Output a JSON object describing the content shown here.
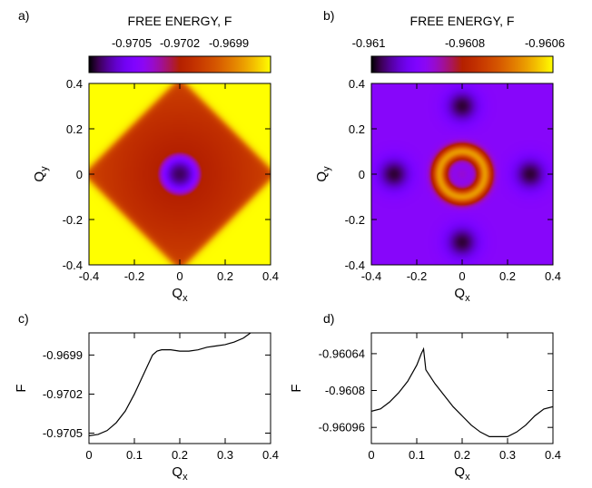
{
  "chart_data": [
    {
      "panel_label": "a)",
      "type": "heatmap",
      "colorbar": {
        "title": "FREE ENERGY, F",
        "ticks": [
          "-0.9705",
          "-0.9702",
          "-0.9699"
        ],
        "tick_values": [
          -0.9705,
          -0.9702,
          -0.9699
        ],
        "range": [
          -0.9706,
          -0.9698
        ],
        "palette": "gnuplot black-purple-red-orange-yellow"
      },
      "xlabel_main": "Q",
      "xlabel_sub": "x",
      "ylabel_main": "Q",
      "ylabel_sub": "y",
      "xticks": [
        "-0.4",
        "-0.2",
        "0",
        "0.2",
        "0.4"
      ],
      "yticks": [
        "-0.4",
        "-0.2",
        "0",
        "0.2",
        "0.4"
      ],
      "xlim": [
        -0.4,
        0.4
      ],
      "ylim": [
        -0.4,
        0.4
      ],
      "field": {
        "description_levels": {
          "center_min": -0.97055,
          "ring_radius": 0.1,
          "plateau_value": -0.9702,
          "plateau_L1_extent": 0.42,
          "outer_value": -0.9698
        }
      }
    },
    {
      "panel_label": "b)",
      "type": "heatmap",
      "colorbar": {
        "title": "FREE ENERGY, F",
        "ticks": [
          "-0.961",
          "-0.9608",
          "-0.9606"
        ],
        "tick_values": [
          -0.961,
          -0.9608,
          -0.9606
        ],
        "range": [
          -0.96112,
          -0.96055
        ],
        "palette": "gnuplot black-purple-red-orange-yellow"
      },
      "xlabel_main": "Q",
      "xlabel_sub": "x",
      "ylabel_main": "Q",
      "ylabel_sub": "y",
      "xticks": [
        "-0.4",
        "-0.2",
        "0",
        "0.2",
        "0.4"
      ],
      "yticks": [
        "-0.4",
        "-0.2",
        "0",
        "0.2",
        "0.4"
      ],
      "xlim": [
        -0.4,
        0.4
      ],
      "ylim": [
        -0.4,
        0.4
      ],
      "field": {
        "description_levels": {
          "background": -0.96096,
          "ring_radius": 0.1,
          "ring_peak": -0.96064,
          "center": -0.96092,
          "dark_lobes_at": [
            [
              0.3,
              0
            ],
            [
              -0.3,
              0
            ],
            [
              0,
              0.3
            ],
            [
              0,
              -0.3
            ]
          ],
          "dark_lobe_value": -0.9611
        }
      }
    },
    {
      "panel_label": "c)",
      "type": "line",
      "xlabel_main": "Q",
      "xlabel_sub": "x",
      "ylabel": "F",
      "xticks": [
        "0",
        "0.1",
        "0.2",
        "0.3",
        "0.4"
      ],
      "yticks": [
        "-0.9699",
        "-0.9702",
        "-0.9705"
      ],
      "ytick_values": [
        -0.9699,
        -0.9702,
        -0.9705
      ],
      "xlim": [
        0,
        0.4
      ],
      "ylim": [
        -0.97058,
        -0.96973
      ],
      "series": [
        {
          "x": [
            0,
            0.02,
            0.04,
            0.06,
            0.08,
            0.1,
            0.12,
            0.14,
            0.15,
            0.16,
            0.18,
            0.2,
            0.22,
            0.24,
            0.26,
            0.28,
            0.3,
            0.32,
            0.34,
            0.36,
            0.38,
            0.4
          ],
          "y": [
            -0.97052,
            -0.97051,
            -0.97048,
            -0.97042,
            -0.97033,
            -0.9702,
            -0.97005,
            -0.9699,
            -0.96987,
            -0.96986,
            -0.96986,
            -0.96987,
            -0.96987,
            -0.96986,
            -0.96984,
            -0.96983,
            -0.96982,
            -0.9698,
            -0.96977,
            -0.96972,
            -0.96964,
            -0.96957
          ]
        }
      ]
    },
    {
      "panel_label": "d)",
      "type": "line",
      "xlabel_main": "Q",
      "xlabel_sub": "x",
      "ylabel": "F",
      "xticks": [
        "0",
        "0.1",
        "0.2",
        "0.3",
        "0.4"
      ],
      "yticks": [
        "-0.96064",
        "-0.9608",
        "-0.96096"
      ],
      "ytick_values": [
        -0.96064,
        -0.9608,
        -0.96096
      ],
      "xlim": [
        0,
        0.4
      ],
      "ylim": [
        -0.96103,
        -0.96055
      ],
      "series": [
        {
          "x": [
            0,
            0.02,
            0.04,
            0.06,
            0.08,
            0.1,
            0.11,
            0.115,
            0.12,
            0.14,
            0.16,
            0.18,
            0.2,
            0.22,
            0.24,
            0.26,
            0.28,
            0.3,
            0.32,
            0.34,
            0.36,
            0.38,
            0.4
          ],
          "y": [
            -0.96089,
            -0.96088,
            -0.96085,
            -0.96081,
            -0.96076,
            -0.96069,
            -0.96064,
            -0.96062,
            -0.96071,
            -0.96077,
            -0.96082,
            -0.96087,
            -0.96091,
            -0.96095,
            -0.96098,
            -0.961,
            -0.961,
            -0.961,
            -0.96098,
            -0.96095,
            -0.96091,
            -0.96088,
            -0.96087
          ]
        }
      ]
    }
  ]
}
